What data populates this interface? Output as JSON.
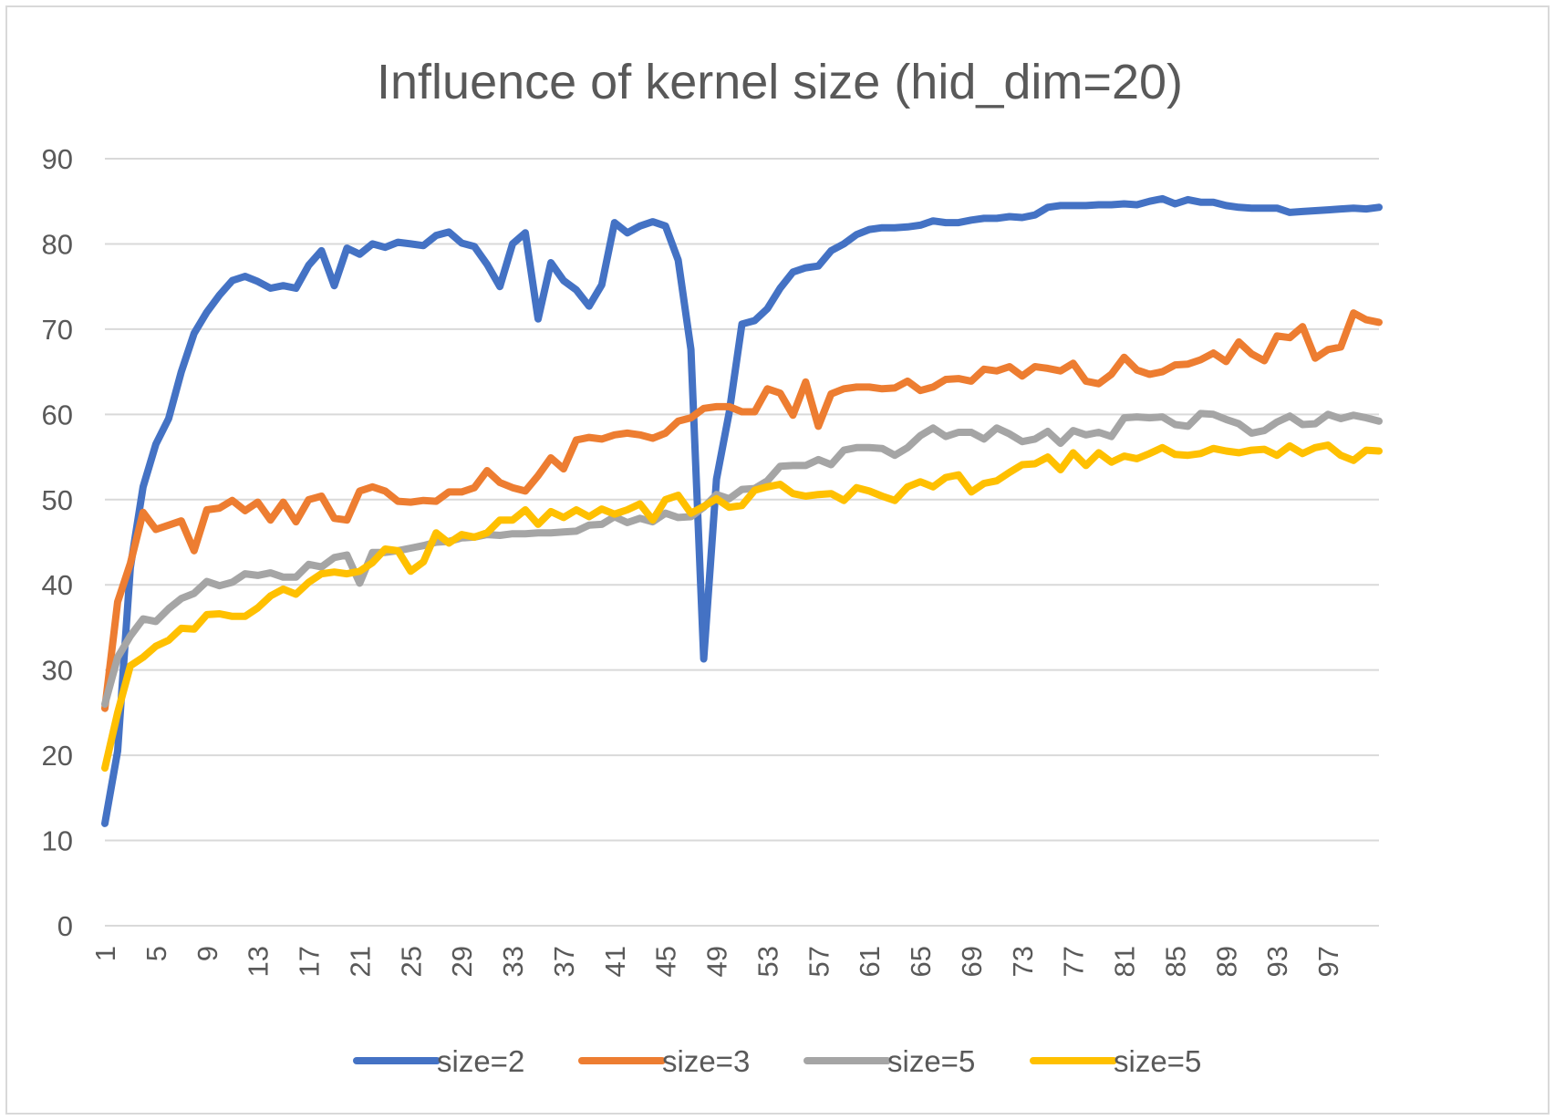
{
  "chart_data": {
    "type": "line",
    "title": "Influence of kernel size (hid_dim=20)",
    "xlabel": "",
    "ylabel": "",
    "x": [
      1,
      2,
      3,
      4,
      5,
      6,
      7,
      8,
      9,
      10,
      11,
      12,
      13,
      14,
      15,
      16,
      17,
      18,
      19,
      20,
      21,
      22,
      23,
      24,
      25,
      26,
      27,
      28,
      29,
      30,
      31,
      32,
      33,
      34,
      35,
      36,
      37,
      38,
      39,
      40,
      41,
      42,
      43,
      44,
      45,
      46,
      47,
      48,
      49,
      50,
      51,
      52,
      53,
      54,
      55,
      56,
      57,
      58,
      59,
      60,
      61,
      62,
      63,
      64,
      65,
      66,
      67,
      68,
      69,
      70,
      71,
      72,
      73,
      74,
      75,
      76,
      77,
      78,
      79,
      80,
      81,
      82,
      83,
      84,
      85,
      86,
      87,
      88,
      89,
      90,
      91,
      92,
      93,
      94,
      95,
      96,
      97,
      98,
      99,
      100,
      101
    ],
    "xticks": [
      "1",
      "5",
      "9",
      "13",
      "17",
      "21",
      "25",
      "29",
      "33",
      "37",
      "41",
      "45",
      "49",
      "53",
      "57",
      "61",
      "65",
      "69",
      "73",
      "77",
      "81",
      "85",
      "89",
      "93",
      "97"
    ],
    "xtick_values": [
      1,
      5,
      9,
      13,
      17,
      21,
      25,
      29,
      33,
      37,
      41,
      45,
      49,
      53,
      57,
      61,
      65,
      69,
      73,
      77,
      81,
      85,
      89,
      93,
      97
    ],
    "yticks": [
      "0",
      "10",
      "20",
      "30",
      "40",
      "50",
      "60",
      "70",
      "80",
      "90"
    ],
    "ylim": [
      0,
      90
    ],
    "grid": true,
    "legend_position": "bottom",
    "series": [
      {
        "name": "size=2",
        "color": "#4472c4",
        "values": [
          12,
          20.5,
          42,
          51.5,
          56.5,
          59.5,
          65,
          69.5,
          72,
          74,
          75.7,
          76.2,
          75.6,
          74.8,
          75.1,
          74.8,
          77.5,
          79.2,
          75.1,
          79.5,
          78.8,
          80,
          79.6,
          80.2,
          80,
          79.8,
          81,
          81.4,
          80.1,
          79.7,
          77.6,
          75,
          80,
          81.3,
          71.2,
          77.8,
          75.7,
          74.6,
          72.7,
          75.2,
          82.5,
          81.3,
          82.1,
          82.6,
          82.1,
          78.1,
          67.6,
          31.3,
          52.4,
          60.2,
          70.6,
          71,
          72.4,
          74.8,
          76.7,
          77.2,
          77.4,
          79.2,
          80,
          81.1,
          81.7,
          81.9,
          81.9,
          82,
          82.2,
          82.7,
          82.5,
          82.5,
          82.8,
          83,
          83,
          83.2,
          83.1,
          83.4,
          84.3,
          84.5,
          84.5,
          84.5,
          84.6,
          84.6,
          84.7,
          84.6,
          85,
          85.3,
          84.7,
          85.2,
          84.9,
          84.9,
          84.5,
          84.3,
          84.2,
          84.2,
          84.2,
          83.7,
          83.8,
          83.9,
          84,
          84.1,
          84.2,
          84.1,
          84.3
        ]
      },
      {
        "name": "size=3",
        "color": "#ed7d31",
        "values": [
          25.5,
          38,
          42.5,
          48.5,
          46.5,
          47,
          47.5,
          44,
          48.8,
          49,
          49.9,
          48.7,
          49.7,
          47.6,
          49.7,
          47.4,
          50,
          50.4,
          47.8,
          47.6,
          51,
          51.5,
          51,
          49.8,
          49.7,
          49.9,
          49.8,
          50.9,
          50.9,
          51.4,
          53.4,
          52,
          51.4,
          51,
          52.8,
          54.9,
          53.6,
          57,
          57.3,
          57.1,
          57.6,
          57.8,
          57.6,
          57.2,
          57.8,
          59.2,
          59.6,
          60.7,
          60.9,
          60.9,
          60.3,
          60.3,
          63,
          62.5,
          59.9,
          63.8,
          58.6,
          62.4,
          63,
          63.2,
          63.2,
          63,
          63.1,
          63.9,
          62.8,
          63.2,
          64.1,
          64.2,
          63.9,
          65.3,
          65.1,
          65.6,
          64.5,
          65.6,
          65.4,
          65.1,
          66,
          63.9,
          63.6,
          64.7,
          66.7,
          65.2,
          64.7,
          65,
          65.8,
          65.9,
          66.4,
          67.2,
          66.2,
          68.5,
          67.1,
          66.3,
          69.2,
          69,
          70.3,
          66.6,
          67.6,
          67.9,
          71.9,
          71.1,
          70.8
        ]
      },
      {
        "name": "size=5",
        "color": "#a5a5a5",
        "values": [
          26,
          31.5,
          34,
          36,
          35.7,
          37.2,
          38.4,
          39,
          40.4,
          39.9,
          40.3,
          41.3,
          41.1,
          41.4,
          40.9,
          40.9,
          42.4,
          42.1,
          43.2,
          43.5,
          40.2,
          43.8,
          43.8,
          44,
          44.3,
          44.6,
          45,
          45.1,
          45.5,
          45.6,
          45.9,
          45.8,
          46,
          46,
          46.1,
          46.1,
          46.2,
          46.3,
          47,
          47.1,
          48,
          47.3,
          47.8,
          47.4,
          48.4,
          47.9,
          48,
          49.1,
          50.6,
          50.1,
          51.2,
          51.3,
          52.2,
          53.9,
          54,
          54,
          54.7,
          54.1,
          55.8,
          56.1,
          56.1,
          56,
          55.2,
          56.1,
          57.5,
          58.4,
          57.4,
          57.9,
          57.9,
          57.1,
          58.4,
          57.7,
          56.8,
          57.1,
          58,
          56.6,
          58.1,
          57.6,
          57.9,
          57.4,
          59.6,
          59.7,
          59.6,
          59.7,
          58.8,
          58.6,
          60.1,
          60,
          59.4,
          58.9,
          57.8,
          58.1,
          59.1,
          59.8,
          58.8,
          58.9,
          60,
          59.5,
          59.9,
          59.6,
          59.2
        ]
      },
      {
        "name": "size=5",
        "color": "#ffc000",
        "values": [
          18.5,
          25,
          30.5,
          31.5,
          32.8,
          33.5,
          34.9,
          34.8,
          36.5,
          36.6,
          36.3,
          36.3,
          37.3,
          38.7,
          39.5,
          38.9,
          40.3,
          41.3,
          41.5,
          41.3,
          41.6,
          42.6,
          44.2,
          44,
          41.6,
          42.7,
          46.1,
          44.9,
          45.9,
          45.6,
          46.1,
          47.6,
          47.6,
          48.8,
          47.1,
          48.6,
          47.9,
          48.8,
          48,
          48.9,
          48.3,
          48.8,
          49.5,
          47.6,
          50,
          50.5,
          48.4,
          49.2,
          50.1,
          49.1,
          49.3,
          51.1,
          51.5,
          51.8,
          50.7,
          50.4,
          50.6,
          50.7,
          49.9,
          51.4,
          51,
          50.4,
          49.9,
          51.5,
          52.1,
          51.5,
          52.6,
          52.9,
          50.9,
          51.9,
          52.2,
          53.2,
          54.1,
          54.2,
          55,
          53.5,
          55.5,
          54,
          55.5,
          54.4,
          55.1,
          54.8,
          55.4,
          56.1,
          55.3,
          55.2,
          55.4,
          56,
          55.7,
          55.5,
          55.8,
          55.9,
          55.2,
          56.3,
          55.4,
          56.1,
          56.4,
          55.2,
          54.6,
          55.8,
          55.7
        ]
      }
    ]
  }
}
